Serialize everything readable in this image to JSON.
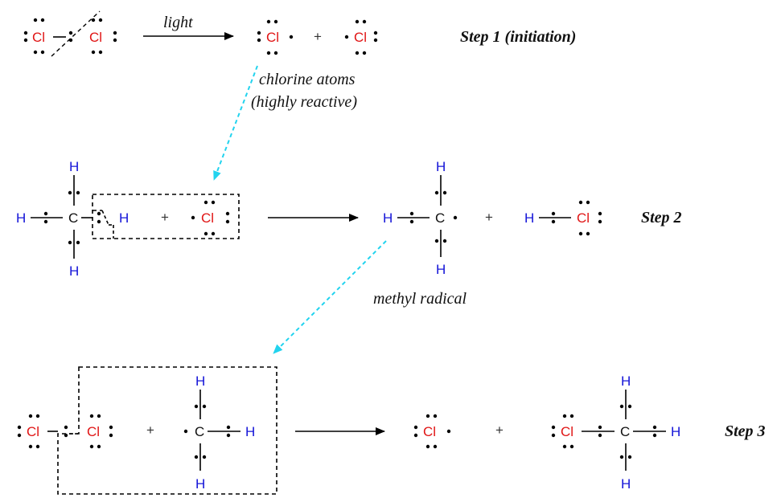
{
  "steps": {
    "step1": "Step 1 (initiation)",
    "step2": "Step 2",
    "step3": "Step 3"
  },
  "labels": {
    "light": "light",
    "chlorine_line1": "chlorine atoms",
    "chlorine_line2": "(highly reactive)",
    "methyl": "methyl radical"
  },
  "atoms": {
    "cl": "Cl",
    "h": "H",
    "c": "C"
  },
  "plus": "+",
  "colors": {
    "hydrogen": "#1515d8",
    "chlorine": "#e01515",
    "carbon": "#111111",
    "highlight_arrow": "#22d3ee"
  }
}
